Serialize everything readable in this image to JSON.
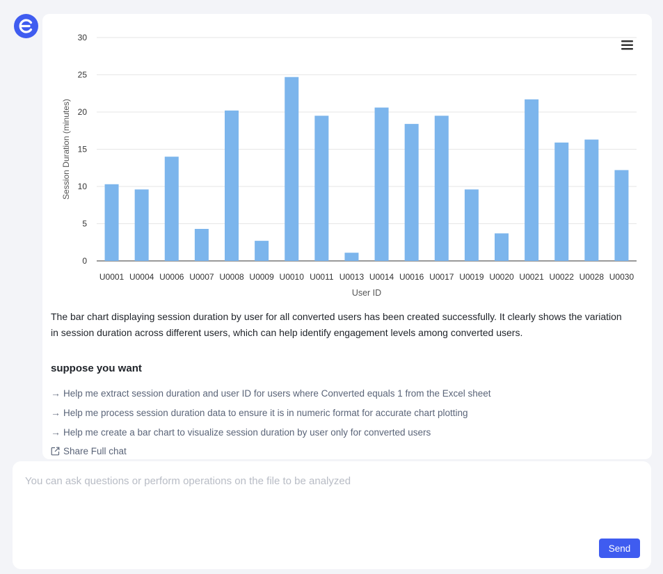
{
  "assistant": {
    "avatar_icon": "e-logo-icon",
    "avatar_color": "#3f5cf0"
  },
  "chart_data": {
    "type": "bar",
    "categories": [
      "U0001",
      "U0004",
      "U0006",
      "U0007",
      "U0008",
      "U0009",
      "U0010",
      "U0011",
      "U0013",
      "U0014",
      "U0016",
      "U0017",
      "U0019",
      "U0020",
      "U0021",
      "U0022",
      "U0028",
      "U0030"
    ],
    "values": [
      10.3,
      9.6,
      14.0,
      4.3,
      20.2,
      2.7,
      24.7,
      19.5,
      1.1,
      20.6,
      18.4,
      19.5,
      9.6,
      3.7,
      21.7,
      15.9,
      16.3,
      12.2
    ],
    "title": "",
    "xlabel": "User ID",
    "ylabel": "Session Duration (minutes)",
    "ylim": [
      0,
      30
    ],
    "yticks": [
      "0",
      "5",
      "10",
      "15",
      "20",
      "25",
      "30"
    ],
    "grid": true,
    "bar_color": "#7cb5ec"
  },
  "chart_menu_icon": "hamburger-menu-icon",
  "summary_text": "The bar chart displaying session duration by user for all converted users has been created successfully. It clearly shows the variation in session duration across different users, which can help identify engagement levels among converted users.",
  "suggestions": {
    "title": "suppose you want",
    "arrow": "→",
    "items": [
      "Help me extract session duration and user ID for users where Converted equals 1 from the Excel sheet",
      "Help me process session duration data to ensure it is in numeric format for accurate chart plotting",
      "Help me create a bar chart to visualize session duration by user only for converted users"
    ]
  },
  "share": {
    "label": "Share Full chat",
    "icon": "external-link-icon"
  },
  "input": {
    "placeholder": "You can ask questions or perform operations on the file to be analyzed",
    "value": "",
    "send_label": "Send",
    "send_color": "#3f5cf0"
  }
}
